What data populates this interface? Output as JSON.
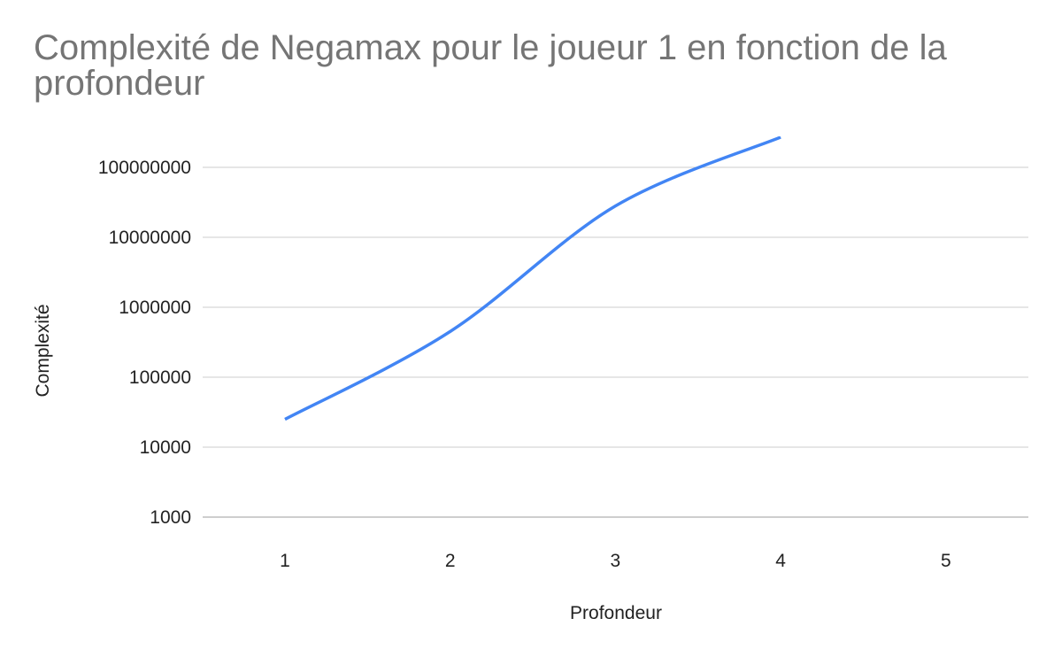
{
  "chart_data": {
    "type": "line",
    "title": "Complexité de Negamax pour le joueur 1 en fonction de la profondeur",
    "xlabel": "Profondeur",
    "ylabel": "Complexité",
    "x": [
      1,
      2,
      3,
      4
    ],
    "x_ticks": [
      "1",
      "2",
      "3",
      "4",
      "5"
    ],
    "y_scale": "log",
    "y_ticks": [
      "1000",
      "10000",
      "100000",
      "1000000",
      "10000000",
      "100000000"
    ],
    "ylim": [
      1000,
      100000000
    ],
    "grid": true,
    "series": [
      {
        "values": [
          25000,
          450000,
          28000000,
          270000000
        ],
        "color": "#4285f4"
      }
    ]
  }
}
